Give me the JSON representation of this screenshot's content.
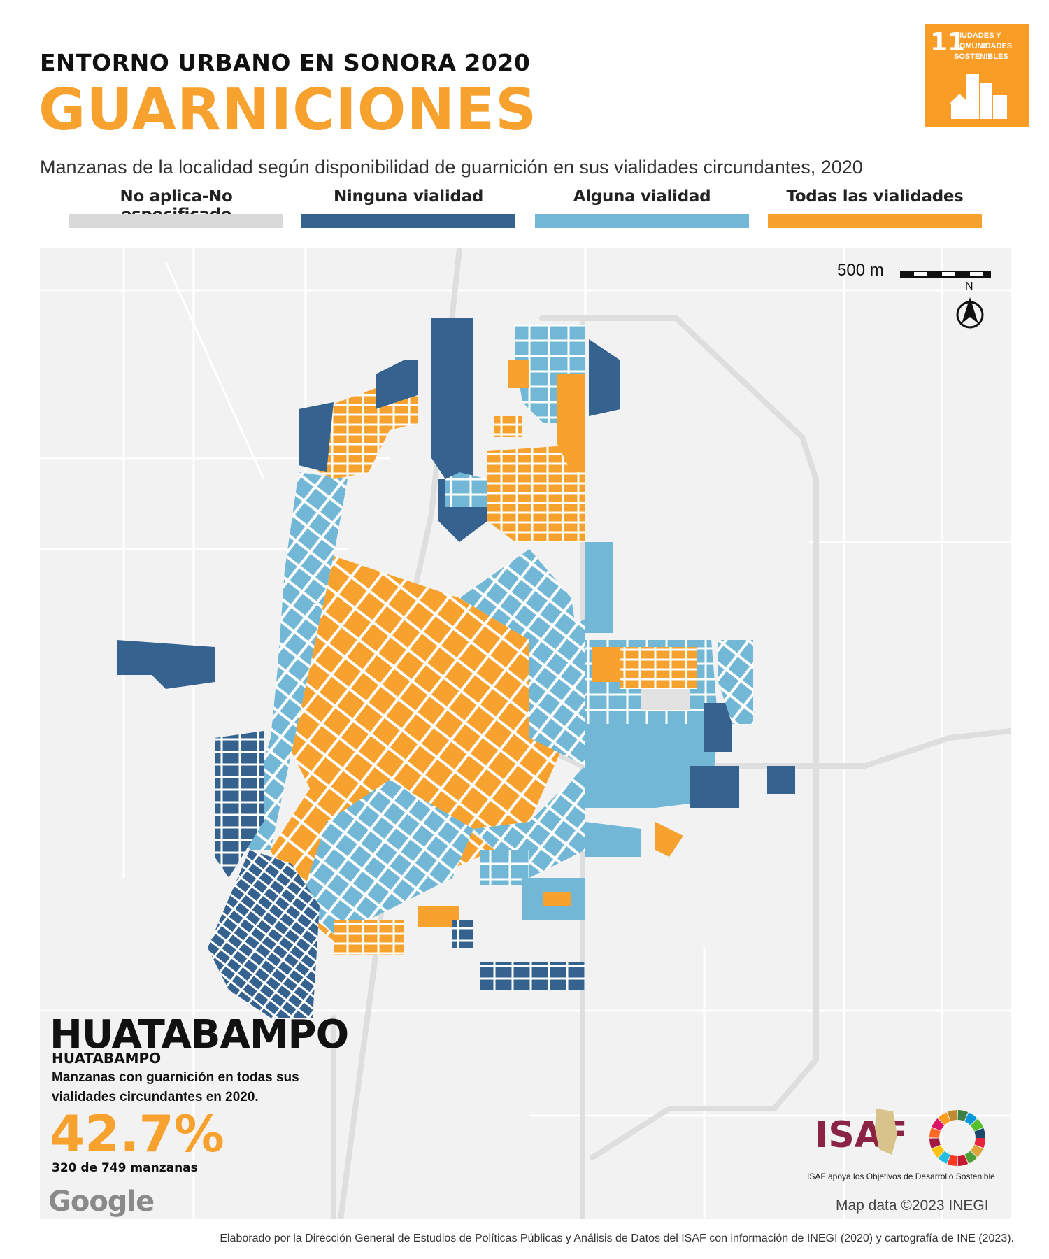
{
  "header": {
    "kicker": "ENTORNO URBANO EN SONORA 2020",
    "title": "GUARNICIONES",
    "subtitle": "Manzanas de la localidad según disponibilidad de guarnición en sus vialidades circundantes, 2020"
  },
  "legend": [
    {
      "label": "No aplica-No especificado",
      "color": "#d9d9d9"
    },
    {
      "label": "Ninguna vialidad",
      "color": "#35628F"
    },
    {
      "label": "Alguna vialidad",
      "color": "#72B8D6"
    },
    {
      "label": "Todas las vialidades",
      "color": "#F7A12E"
    }
  ],
  "sdg_badge": {
    "number": "11",
    "text": "CIUDADES Y COMUNIDADES SOSTENIBLES",
    "color": "#F99D26"
  },
  "map": {
    "scale_label": "500 m",
    "north_label": "N",
    "locality_name": "HUATABAMPO",
    "locality_subtitle": "HUATABAMPO",
    "stat_description": "Manzanas con guarnición en todas sus vialidades circundantes en 2020.",
    "stat_percent": "42.7%",
    "stat_count": "320 de 749 manzanas",
    "google_logo": "Google",
    "attribution": "Map data ©2023 INEGI"
  },
  "branding": {
    "isaf_logo": "ISAF",
    "isaf_tagline": "ISAF apoya los Objetivos de Desarrollo Sostenible"
  },
  "footer": {
    "credit": "Elaborado por la Dirección General de Estudios de Políticas Públicas y Análisis de Datos del ISAF con información de INEGI (2020) y cartografía de INE (2023)."
  }
}
